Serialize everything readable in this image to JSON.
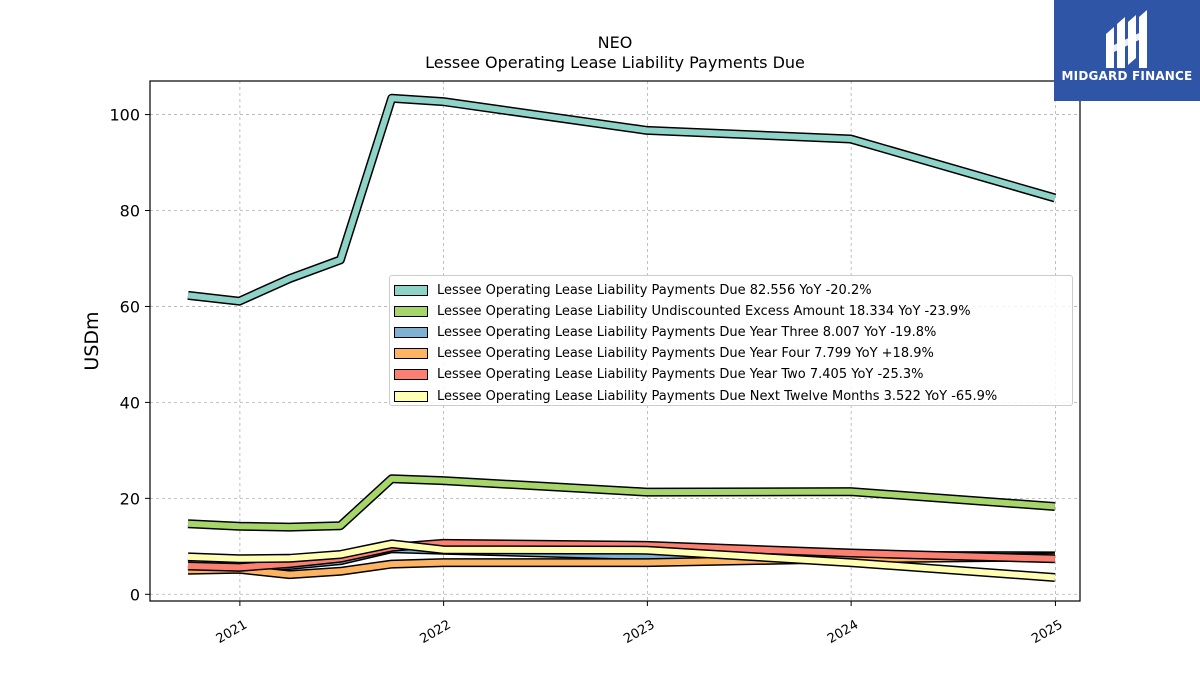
{
  "chart_data": {
    "type": "line",
    "title": "NEO",
    "subtitle": "Lessee Operating Lease Liability Payments Due",
    "ylabel": "USDm",
    "xlabel": "",
    "ylim": [
      0,
      107
    ],
    "yticks": [
      0,
      20,
      40,
      60,
      80,
      100
    ],
    "xticks": [
      "2021",
      "2022",
      "2023",
      "2024",
      "2025"
    ],
    "x": [
      "2020-09-30",
      "2020-12-31",
      "2021-03-31",
      "2021-06-30",
      "2021-09-30",
      "2021-12-31",
      "2022-12-31",
      "2023-12-31",
      "2024-12-31"
    ],
    "grid": true,
    "legend_position": "center-right",
    "series": [
      {
        "name": "Lessee Operating Lease Liability Payments Due",
        "legend": "Lessee Operating Lease Liability Payments Due  82.556 YoY -20.2%",
        "color": "#8dd3c7",
        "values": [
          62.3,
          61.1,
          65.8,
          69.7,
          103.4,
          102.7,
          96.7,
          94.9,
          82.6
        ]
      },
      {
        "name": "Lessee Operating Lease Liability Undiscounted Excess Amount",
        "legend": "Lessee Operating Lease Liability Undiscounted Excess Amount  18.334 YoY -23.9%",
        "color": "#a6d56a",
        "values": [
          14.7,
          14.2,
          14.0,
          14.3,
          24.1,
          23.7,
          21.3,
          21.4,
          18.3
        ]
      },
      {
        "name": "Lessee Operating Lease Liability Payments Due Year Three",
        "legend": "Lessee Operating Lease Liability Payments Due Year Three  8.007 YoY -19.8%",
        "color": "#80b1d3",
        "values": [
          5.1,
          5.3,
          6.0,
          7.0,
          9.5,
          9.2,
          8.0,
          8.1,
          8.0
        ]
      },
      {
        "name": "Lessee Operating Lease Liability Payments Due Year Four",
        "legend": "Lessee Operating Lease Liability Payments Due Year Four  7.799 YoY +18.9%",
        "color": "#fdb462",
        "values": [
          5.0,
          5.2,
          4.1,
          4.8,
          6.3,
          6.6,
          6.6,
          7.4,
          7.8
        ]
      },
      {
        "name": "Lessee Operating Lease Liability Payments Due Year Two",
        "legend": "Lessee Operating Lease Liability Payments Due Year Two  7.405 YoY -25.3%",
        "color": "#fb8072",
        "values": [
          5.9,
          5.6,
          6.4,
          7.5,
          9.8,
          10.6,
          10.2,
          8.6,
          7.4
        ]
      },
      {
        "name": "Lessee Operating Lease Liability Payments Due Next Twelve Months",
        "legend": "Lessee Operating Lease Liability Payments Due Next Twelve Months  3.522 YoY -65.9%",
        "color": "#ffffb3",
        "values": [
          7.8,
          7.4,
          7.5,
          8.3,
          10.5,
          9.3,
          9.2,
          6.6,
          3.5
        ]
      }
    ]
  },
  "logo": {
    "text": "MIDGARD FINANCE",
    "icon": "midgard-logo-icon",
    "background": "#2e55a6"
  }
}
